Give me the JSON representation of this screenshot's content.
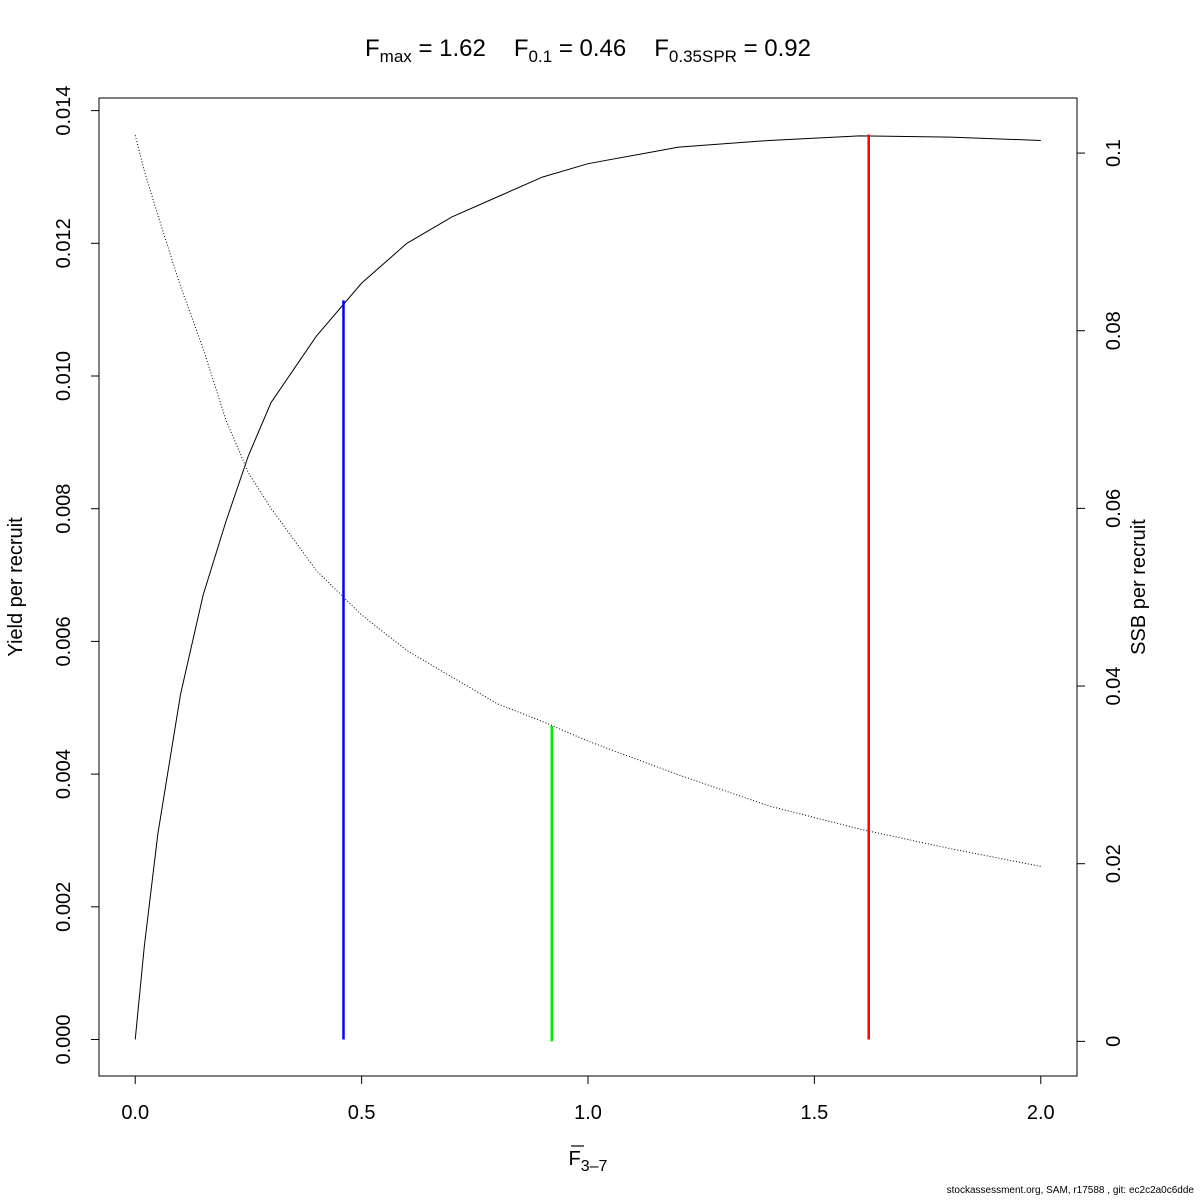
{
  "chart_data": {
    "type": "line",
    "title_parts": [
      {
        "base": "F",
        "sub": "max",
        "text": " = 1.62"
      },
      {
        "base": "F",
        "sub": "0.1",
        "text": " = 0.46"
      },
      {
        "base": "F",
        "sub": "0.35SPR",
        "text": " = 0.92"
      }
    ],
    "x_label": {
      "base": "F",
      "sub": "3–7"
    },
    "y_label": "Yield per recruit",
    "y2_label": "SSB per recruit",
    "footer": "stockassessment.org, SAM, r17588 , git: ec2c2a0c6dde",
    "x": [
      0,
      0.02,
      0.05,
      0.1,
      0.15,
      0.2,
      0.25,
      0.3,
      0.4,
      0.5,
      0.6,
      0.7,
      0.8,
      0.9,
      1.0,
      1.2,
      1.4,
      1.6,
      1.8,
      2.0
    ],
    "series": [
      {
        "color": "#000000",
        "dash": "solid",
        "axis": "y",
        "values": [
          0,
          0.0014,
          0.0031,
          0.0052,
          0.0067,
          0.0078,
          0.0088,
          0.0096,
          0.0106,
          0.0114,
          0.012,
          0.0124,
          0.0127,
          0.013,
          0.0132,
          0.01345,
          0.01355,
          0.01362,
          0.0136,
          0.01355
        ]
      },
      {
        "color": "#000000",
        "dash": "dotted",
        "axis": "y2",
        "values": [
          0.102,
          0.098,
          0.093,
          0.085,
          0.078,
          0.07,
          0.064,
          0.06,
          0.053,
          0.048,
          0.044,
          0.041,
          0.038,
          0.036,
          0.0338,
          0.03,
          0.0265,
          0.0239,
          0.0217,
          0.0197
        ]
      }
    ],
    "reference_lines": [
      {
        "x": 0.46,
        "y": 0.01114,
        "axis": "y",
        "color": "#0000ff"
      },
      {
        "x": 0.92,
        "y": 0.0355,
        "axis": "y2",
        "color": "#00ee00"
      },
      {
        "x": 1.62,
        "y": 0.01364,
        "axis": "y",
        "color": "#ff0000"
      }
    ],
    "xlim": [
      -0.08,
      2.08
    ],
    "xticks": [
      {
        "value": 0,
        "label": "0.0"
      },
      {
        "value": 0.5,
        "label": "0.5"
      },
      {
        "value": 1,
        "label": "1.0"
      },
      {
        "value": 1.5,
        "label": "1.5"
      },
      {
        "value": 2,
        "label": "2.0"
      }
    ],
    "ylim": [
      -0.00055,
      0.01419
    ],
    "yticks": [
      {
        "value": 0,
        "label": "0.000"
      },
      {
        "value": 0.002,
        "label": "0.002"
      },
      {
        "value": 0.004,
        "label": "0.004"
      },
      {
        "value": 0.006,
        "label": "0.006"
      },
      {
        "value": 0.008,
        "label": "0.008"
      },
      {
        "value": 0.01,
        "label": "0.010"
      },
      {
        "value": 0.012,
        "label": "0.012"
      },
      {
        "value": 0.014,
        "label": "0.014"
      }
    ],
    "y2lim": [
      -0.0039,
      0.1062
    ],
    "y2ticks": [
      0,
      0.02,
      0.04,
      0.06,
      0.08,
      0.1
    ]
  }
}
